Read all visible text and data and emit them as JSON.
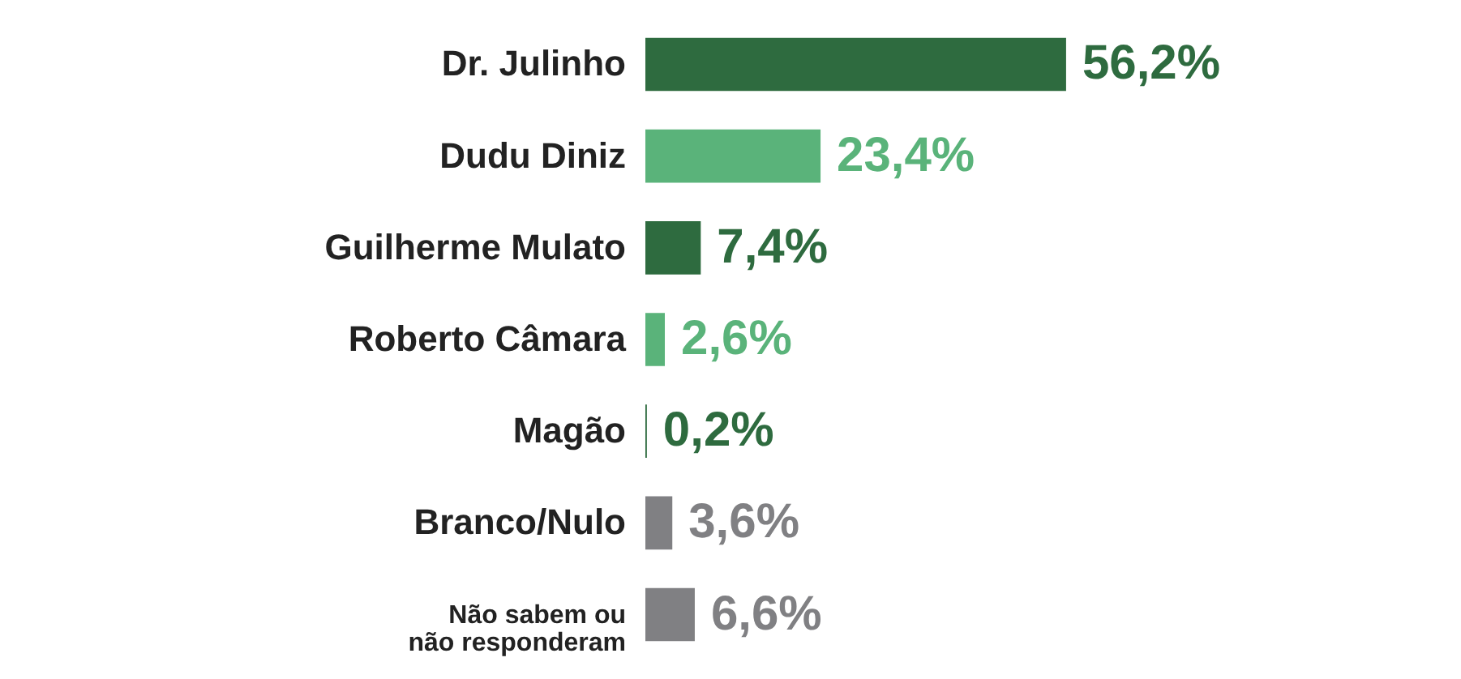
{
  "chart_data": {
    "type": "bar",
    "orientation": "horizontal",
    "categories": [
      "Dr. Julinho",
      "Dudu Diniz",
      "Guilherme Mulato",
      "Roberto Câmara",
      "Magão",
      "Branco/Nulo",
      "Não sabem ou\nnão responderam"
    ],
    "values": [
      56.2,
      23.4,
      7.4,
      2.6,
      0.2,
      3.6,
      6.6
    ],
    "value_labels": [
      "56,2%",
      "23,4%",
      "7,4%",
      "2,6%",
      "0,2%",
      "3,6%",
      "6,6%"
    ],
    "colors": [
      "#2e6b3f",
      "#5ab37a",
      "#2e6b3f",
      "#5ab37a",
      "#2e6b3f",
      "#808083",
      "#808083"
    ]
  }
}
